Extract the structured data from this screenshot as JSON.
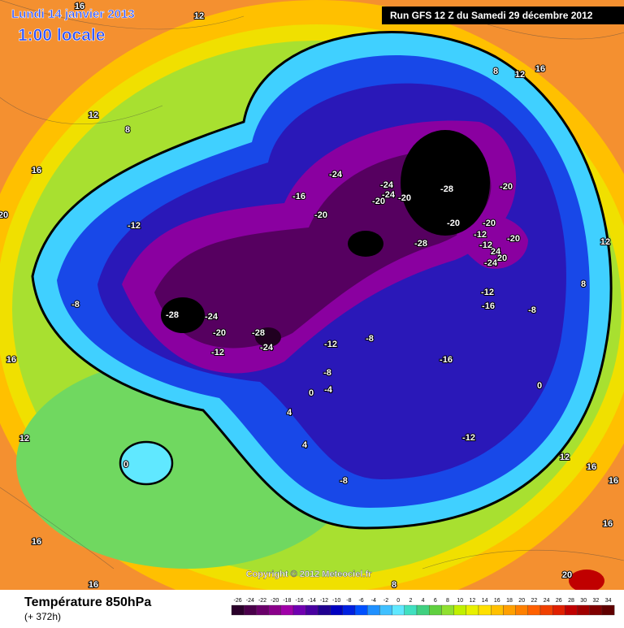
{
  "header": {
    "valid_date": "Lundi 14 janvier 2013",
    "local_time": "1:00 locale",
    "run": "Run GFS 12 Z du Samedi 29 décembre 2012"
  },
  "footer": {
    "title": "Température 850hPa",
    "lead_time": "(+ 372h)",
    "copyright": "Copyright © 2012 Meteociel.fr"
  },
  "contour_labels": [
    16,
    12,
    16,
    8,
    12,
    12,
    8,
    16,
    20,
    12,
    8,
    16,
    12,
    16,
    16,
    8,
    20,
    12,
    16,
    16,
    16,
    -12,
    -8,
    -28,
    -24,
    -20,
    -12,
    -28,
    -24,
    -12,
    -8,
    -4,
    0,
    4,
    4,
    0,
    -8,
    -12,
    -16,
    -8,
    -8,
    -12,
    -16,
    0,
    -16,
    -20,
    -24,
    -24,
    -24,
    -20,
    -20,
    -24,
    -28,
    -28,
    -20,
    -20,
    -12,
    -20,
    -20,
    -12,
    24,
    20,
    -24
  ],
  "legend": {
    "ticks": [
      -26,
      -24,
      -22,
      -20,
      -18,
      -16,
      -14,
      -12,
      -10,
      -8,
      -6,
      -4,
      -2,
      0,
      2,
      4,
      6,
      8,
      10,
      12,
      14,
      16,
      18,
      20,
      22,
      24,
      26,
      28,
      30,
      32,
      34
    ],
    "colors": [
      "#2a002a",
      "#4a004a",
      "#6a006a",
      "#8a008a",
      "#a000a8",
      "#7000b0",
      "#4800a0",
      "#200090",
      "#0000c0",
      "#0020e0",
      "#0050ff",
      "#2090ff",
      "#40c0ff",
      "#60e8ff",
      "#40e0c0",
      "#40d080",
      "#60d040",
      "#90e030",
      "#c0f000",
      "#e8f000",
      "#ffe000",
      "#ffc000",
      "#ffa000",
      "#ff8000",
      "#ff6000",
      "#f04000",
      "#e02000",
      "#c00000",
      "#a00000",
      "#800000",
      "#600000"
    ]
  }
}
